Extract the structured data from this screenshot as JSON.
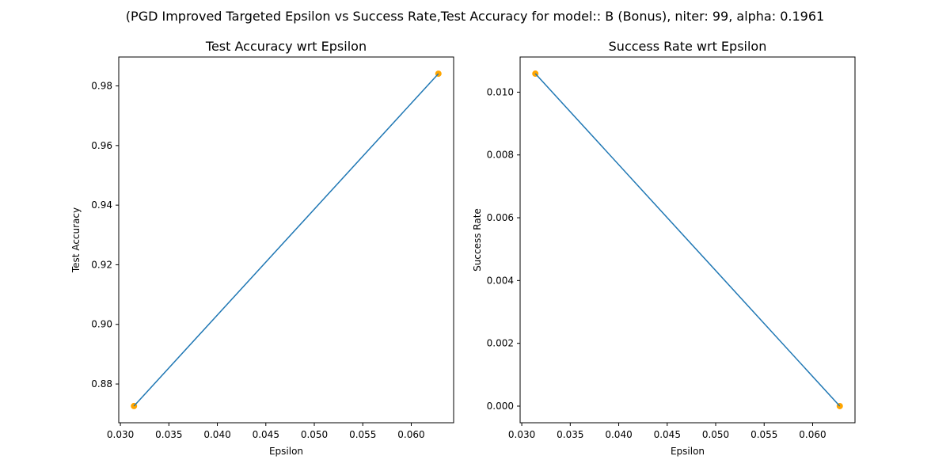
{
  "suptitle": "(PGD Improved Targeted Epsilon vs Success Rate,Test Accuracy for model:: B (Bonus), niter: 99, alpha:  0.1961",
  "colors": {
    "line": "#1f77b4",
    "marker": "#ffa500",
    "axes": "#000000",
    "background": "#ffffff"
  },
  "chart_data": [
    {
      "type": "line",
      "title": "Test Accuracy wrt Epsilon",
      "xlabel": "Epsilon",
      "ylabel": "Test Accuracy",
      "x": [
        0.0314,
        0.0628
      ],
      "series": [
        {
          "values": [
            0.8726,
            0.9841
          ]
        }
      ],
      "markers": true,
      "xlim": [
        0.02983,
        0.06437
      ],
      "ylim": [
        0.867,
        0.9897
      ],
      "xticks": [
        0.03,
        0.035,
        0.04,
        0.045,
        0.05,
        0.055,
        0.06
      ],
      "xtick_labels": [
        "0.030",
        "0.035",
        "0.040",
        "0.045",
        "0.050",
        "0.055",
        "0.060"
      ],
      "yticks": [
        0.88,
        0.9,
        0.92,
        0.94,
        0.96,
        0.98
      ],
      "ytick_labels": [
        "0.88",
        "0.90",
        "0.92",
        "0.94",
        "0.96",
        "0.98"
      ],
      "grid": false
    },
    {
      "type": "line",
      "title": "Success Rate wrt Epsilon",
      "xlabel": "Epsilon",
      "ylabel": "Success Rate",
      "x": [
        0.0314,
        0.0628
      ],
      "series": [
        {
          "values": [
            0.01059,
            0.0
          ]
        }
      ],
      "markers": true,
      "xlim": [
        0.02983,
        0.06437
      ],
      "ylim": [
        -0.00053,
        0.01112
      ],
      "xticks": [
        0.03,
        0.035,
        0.04,
        0.045,
        0.05,
        0.055,
        0.06
      ],
      "xtick_labels": [
        "0.030",
        "0.035",
        "0.040",
        "0.045",
        "0.050",
        "0.055",
        "0.060"
      ],
      "yticks": [
        0.0,
        0.002,
        0.004,
        0.006,
        0.008,
        0.01
      ],
      "ytick_labels": [
        "0.000",
        "0.002",
        "0.004",
        "0.006",
        "0.008",
        "0.010"
      ],
      "grid": false
    }
  ]
}
